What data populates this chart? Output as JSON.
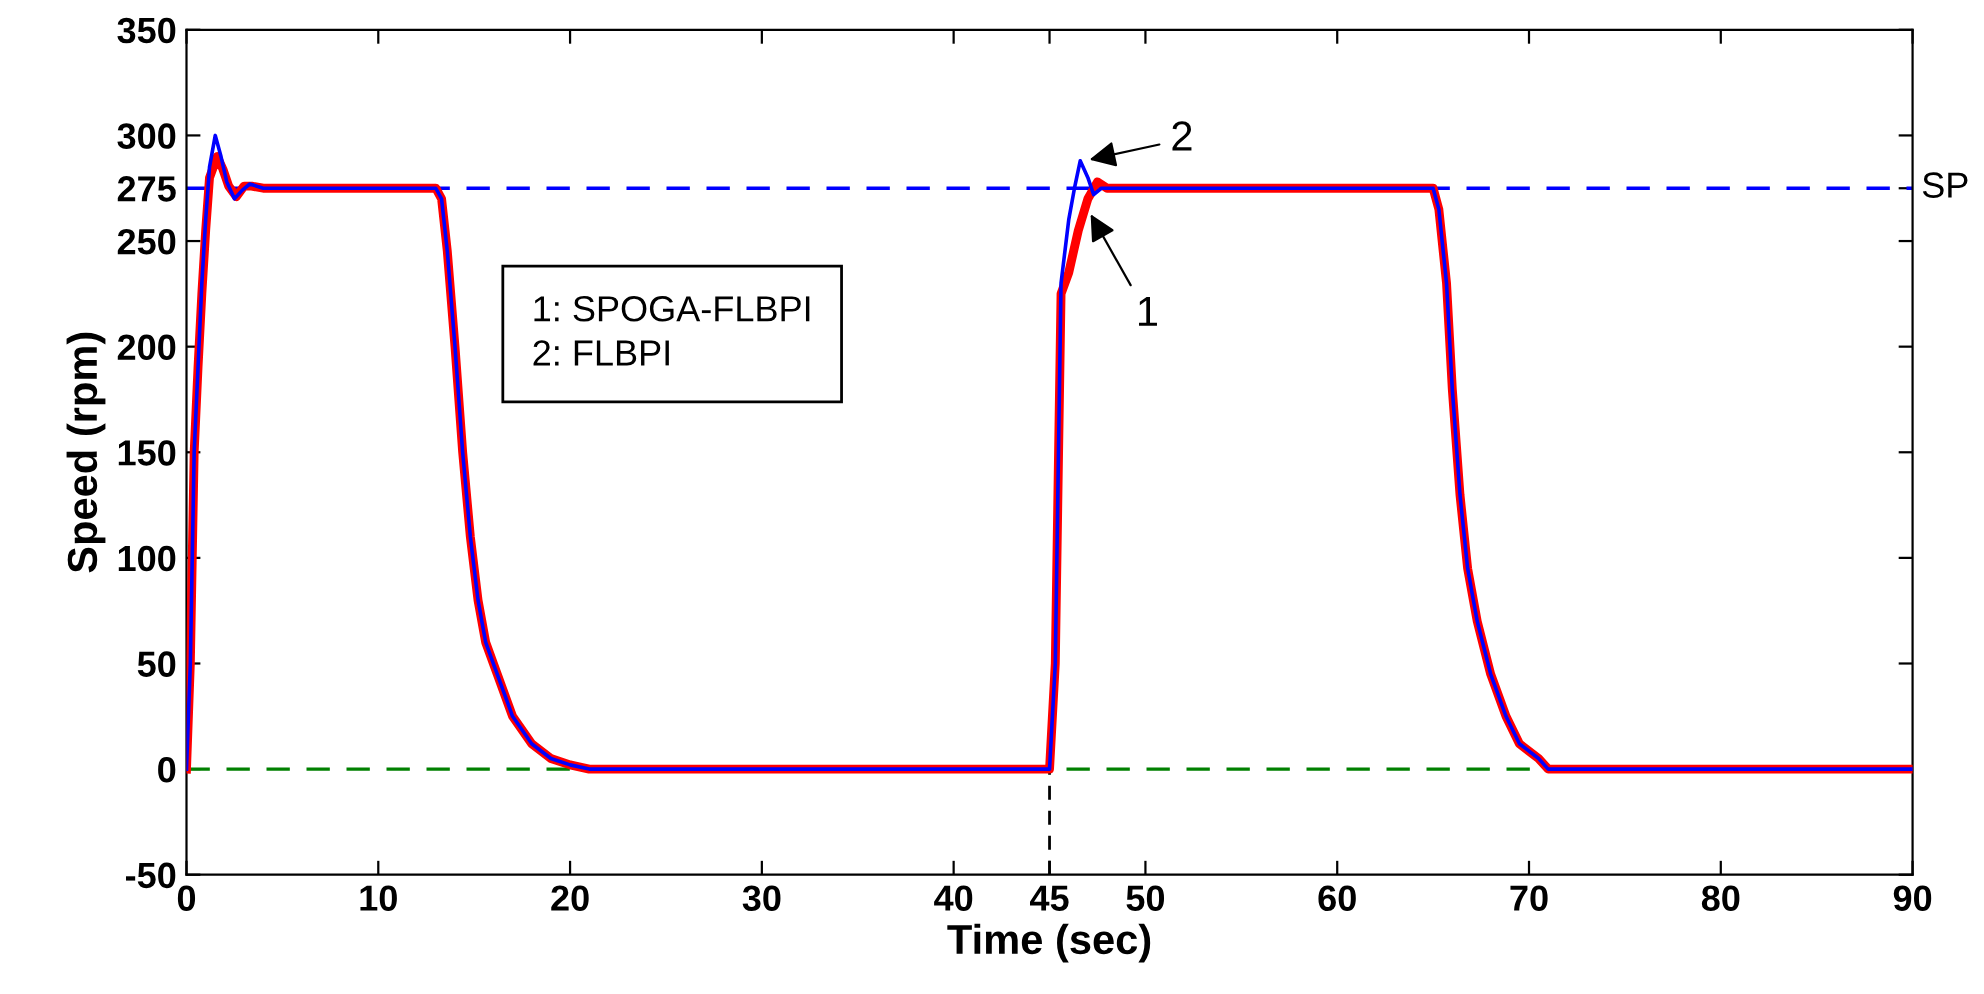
{
  "chart_data": {
    "type": "line",
    "xlabel": "Time (sec)",
    "ylabel": "Speed (rpm)",
    "xlim": [
      0,
      90
    ],
    "ylim": [
      -50,
      350
    ],
    "xticks": [
      0,
      10,
      20,
      30,
      40,
      45,
      50,
      60,
      70,
      80,
      90
    ],
    "yticks": [
      -50,
      0,
      50,
      100,
      150,
      200,
      250,
      275,
      300,
      350
    ],
    "grid": false,
    "line_style": "solid",
    "marker": "none",
    "series": [
      {
        "color": "#ff0000",
        "x": [
          0,
          0.2,
          0.4,
          0.6,
          0.8,
          1.0,
          1.2,
          1.6,
          1.9,
          2.2,
          2.6,
          3.0,
          3.4,
          4,
          13,
          13.3,
          13.6,
          14,
          14.4,
          14.8,
          15.2,
          15.6,
          16.2,
          17,
          18,
          19,
          20,
          21,
          45,
          45.3,
          45.6,
          46,
          46.5,
          47,
          47.5,
          48,
          65,
          65.3,
          65.7,
          66,
          66.4,
          66.8,
          67.3,
          68,
          68.8,
          69.5,
          70.5,
          71,
          90
        ],
        "values": [
          0,
          50,
          150,
          190,
          225,
          255,
          280,
          290,
          284,
          276,
          271,
          276,
          276,
          275,
          275,
          270,
          245,
          200,
          150,
          110,
          80,
          60,
          45,
          25,
          12,
          5,
          2,
          0,
          0,
          50,
          225,
          235,
          255,
          270,
          278,
          275,
          275,
          265,
          230,
          180,
          130,
          95,
          70,
          45,
          25,
          12,
          5,
          0,
          0
        ]
      },
      {
        "color": "#0000ff",
        "x": [
          0,
          0.2,
          0.4,
          0.6,
          0.8,
          1.0,
          1.2,
          1.5,
          1.8,
          2.1,
          2.5,
          2.9,
          3.3,
          4,
          13,
          13.3,
          13.6,
          14,
          14.4,
          14.8,
          15.2,
          15.6,
          16.2,
          17,
          18,
          19,
          20,
          21,
          45,
          45.3,
          45.6,
          46,
          46.3,
          46.6,
          47,
          47.3,
          47.7,
          65,
          65.3,
          65.7,
          66,
          66.4,
          66.8,
          67.3,
          68,
          68.8,
          69.5,
          70.5,
          71,
          90
        ],
        "values": [
          0,
          50,
          150,
          190,
          230,
          260,
          285,
          300,
          290,
          278,
          270,
          274,
          277,
          275,
          275,
          270,
          245,
          200,
          150,
          110,
          80,
          60,
          45,
          25,
          12,
          5,
          2,
          0,
          0,
          50,
          230,
          260,
          275,
          288,
          280,
          272,
          275,
          275,
          265,
          230,
          180,
          130,
          95,
          70,
          45,
          25,
          12,
          5,
          0,
          0
        ]
      }
    ],
    "ref_lines": [
      {
        "axis": "y",
        "value": 275,
        "label": "SP",
        "color": "#0000ff",
        "line_style": "dashed"
      },
      {
        "axis": "y",
        "value": 0,
        "color": "#008000",
        "line_style": "dashed"
      },
      {
        "axis": "x",
        "value": 45,
        "color": "#000000",
        "line_style": "dashed"
      }
    ],
    "annotations": [
      "1: SPOGA-FLBPI\n2: FLBPI",
      {
        "text": "1",
        "x": 47,
        "y": 265
      },
      {
        "text": "2",
        "x": 46.8,
        "y": 288
      }
    ]
  }
}
